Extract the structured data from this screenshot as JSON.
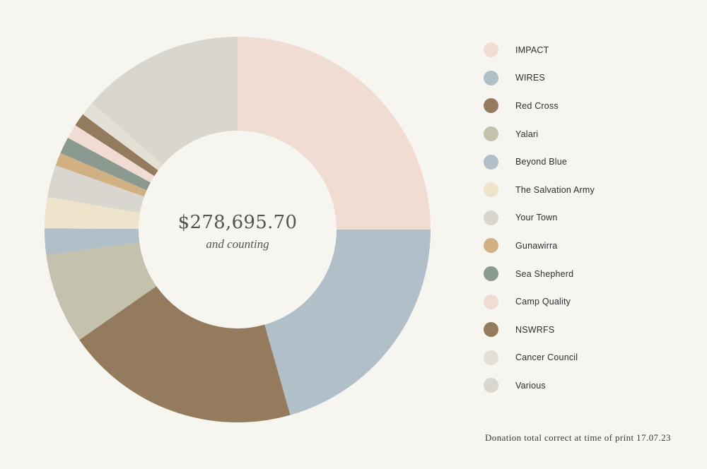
{
  "chart_data": {
    "type": "pie",
    "subtype": "donut",
    "center_value": "$278,695.70",
    "center_caption": "and counting",
    "legend_position": "right",
    "categories": [
      "IMPACT",
      "WIRES",
      "Red Cross",
      "Yalari",
      "Beyond Blue",
      "The Salvation Army",
      "Your Town",
      "Gunawirra",
      "Sea Shepherd",
      "Camp Quality",
      "NSWRFS",
      "Cancer Council",
      "Various"
    ],
    "values": [
      25.0,
      20.6,
      19.7,
      7.6,
      2.2,
      2.6,
      2.7,
      1.1,
      1.4,
      1.2,
      1.1,
      1.2,
      13.6
    ],
    "value_unit": "approx. % share (estimated from slice angles)",
    "colors": [
      "#f0dcd2",
      "#b1bfc8",
      "#957b5d",
      "#c4c1ad",
      "#b1bfc8",
      "#eee4cc",
      "#d8d6cf",
      "#d1b184",
      "#8a9a90",
      "#f0dcd2",
      "#957b5d",
      "#e5e0d6",
      "#d8d6cf"
    ]
  },
  "footnote": "Donation total correct at time of print 17.07.23"
}
